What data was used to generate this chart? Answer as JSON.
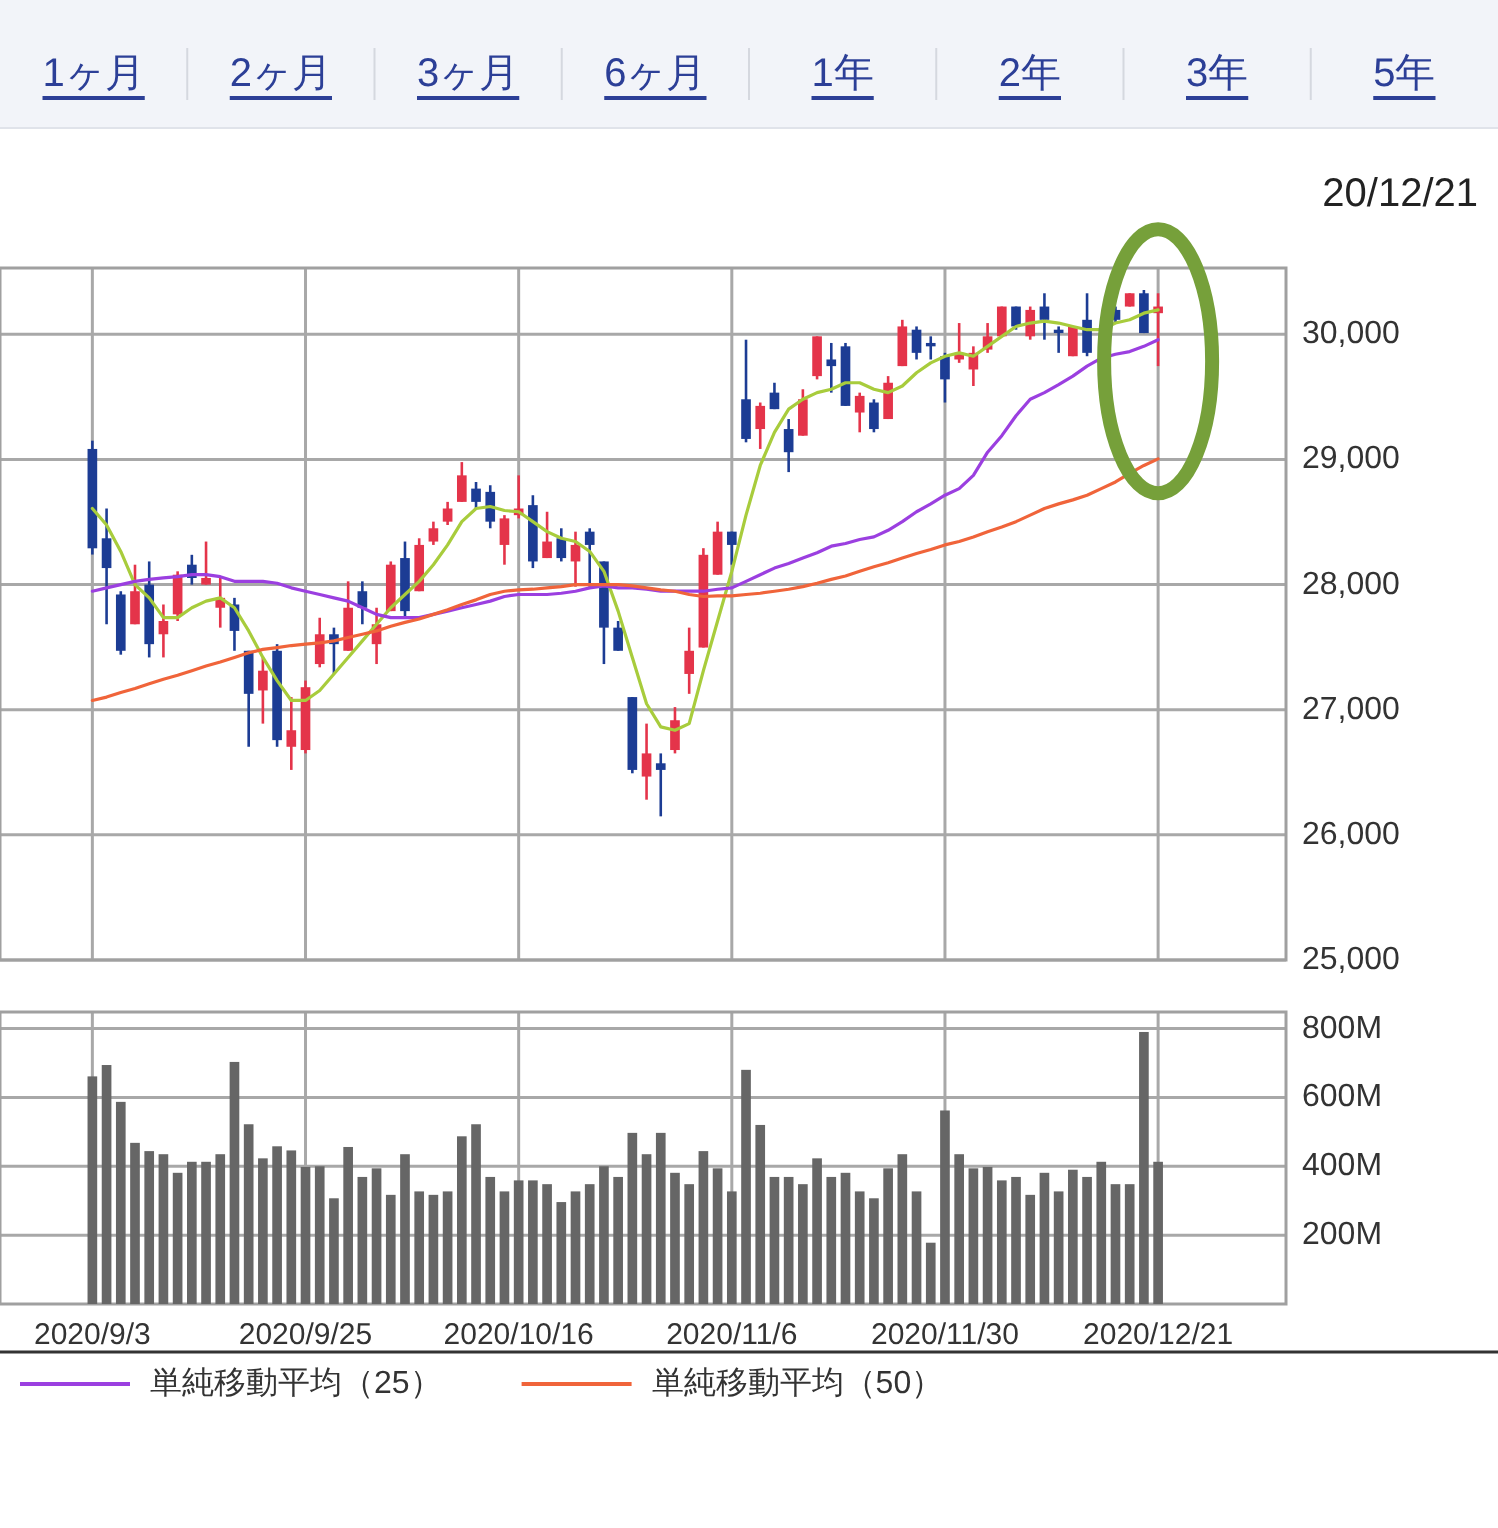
{
  "chart_data": [
    {
      "type": "candlestick",
      "annotations": [
        "1ヶ月",
        "2ヶ月",
        "3ヶ月",
        "6ヶ月",
        "1年",
        "2年",
        "3年",
        "5年",
        "20/12/21"
      ],
      "categories": [
        "2020/9/3",
        null,
        null,
        null,
        null,
        null,
        null,
        null,
        null,
        null,
        null,
        null,
        null,
        null,
        null,
        "2020/9/25",
        null,
        null,
        null,
        null,
        null,
        null,
        null,
        null,
        null,
        null,
        null,
        null,
        null,
        null,
        "2020/10/16",
        null,
        null,
        null,
        null,
        null,
        null,
        null,
        null,
        null,
        null,
        null,
        null,
        null,
        null,
        "2020/11/6",
        null,
        null,
        null,
        null,
        null,
        null,
        null,
        null,
        null,
        null,
        null,
        null,
        null,
        null,
        "2020/11/30",
        null,
        null,
        null,
        null,
        null,
        null,
        null,
        null,
        null,
        null,
        null,
        null,
        null,
        null,
        "2020/12/21",
        null,
        null,
        null,
        null,
        null,
        null,
        null,
        null
      ],
      "ohlc": [
        [
          29084,
          29150,
          28240,
          28290
        ],
        [
          28370,
          28608,
          27683,
          28132
        ],
        [
          27921,
          27947,
          27440,
          27471
        ],
        [
          27683,
          28159,
          27683,
          27947
        ],
        [
          28000,
          28185,
          27418,
          27524
        ],
        [
          27603,
          27841,
          27418,
          27709
        ],
        [
          27762,
          28106,
          27709,
          28079
        ],
        [
          28159,
          28238,
          28000,
          28053
        ],
        [
          28000,
          28344,
          28000,
          28053
        ],
        [
          27815,
          28053,
          27656,
          27894
        ],
        [
          27841,
          27894,
          27471,
          27630
        ],
        [
          27471,
          27471,
          26704,
          27127
        ],
        [
          27154,
          27418,
          26889,
          27312
        ],
        [
          27471,
          27524,
          26704,
          26757
        ],
        [
          26704,
          27101,
          26519,
          26836
        ],
        [
          26678,
          27233,
          26651,
          27180
        ],
        [
          27365,
          27735,
          27339,
          27603
        ],
        [
          27603,
          27656,
          27286,
          27524
        ],
        [
          27471,
          28026,
          27471,
          27815
        ],
        [
          27947,
          28026,
          27683,
          27815
        ],
        [
          27524,
          27815,
          27365,
          27683
        ],
        [
          27788,
          28185,
          27788,
          28159
        ],
        [
          28212,
          28344,
          27735,
          27788
        ],
        [
          27947,
          28370,
          27947,
          28317
        ],
        [
          28344,
          28503,
          28317,
          28450
        ],
        [
          28503,
          28661,
          28476,
          28608
        ],
        [
          28661,
          28979,
          28661,
          28873
        ],
        [
          28767,
          28820,
          28608,
          28661
        ],
        [
          28741,
          28794,
          28450,
          28503
        ],
        [
          28317,
          28555,
          28159,
          28529
        ],
        [
          28555,
          28873,
          28529,
          28608
        ],
        [
          28635,
          28714,
          28132,
          28185
        ],
        [
          28212,
          28582,
          28212,
          28344
        ],
        [
          28370,
          28450,
          28185,
          28212
        ],
        [
          28185,
          28423,
          27983,
          28317
        ],
        [
          28423,
          28450,
          27983,
          28317
        ],
        [
          28185,
          28185,
          27365,
          27656
        ],
        [
          27656,
          27709,
          27471,
          27471
        ],
        [
          27101,
          27101,
          26492,
          26519
        ],
        [
          26466,
          26889,
          26281,
          26651
        ],
        [
          26572,
          26651,
          26148,
          26519
        ],
        [
          26678,
          27021,
          26651,
          26916
        ],
        [
          27286,
          27656,
          27127,
          27471
        ],
        [
          27497,
          28291,
          27497,
          28238
        ],
        [
          28079,
          28503,
          28079,
          28423
        ],
        [
          28423,
          28423,
          28159,
          28317
        ],
        [
          29481,
          29957,
          29137,
          29164
        ],
        [
          29243,
          29455,
          29084,
          29428
        ],
        [
          29534,
          29613,
          29402,
          29402
        ],
        [
          29243,
          29323,
          28899,
          29058
        ],
        [
          29190,
          29561,
          29190,
          29481
        ],
        [
          29666,
          29984,
          29640,
          29984
        ],
        [
          29799,
          29931,
          29534,
          29746
        ],
        [
          29904,
          29931,
          29428,
          29428
        ],
        [
          29375,
          29534,
          29217,
          29508
        ],
        [
          29455,
          29481,
          29217,
          29243
        ],
        [
          29323,
          29666,
          29323,
          29613
        ],
        [
          29746,
          30116,
          29746,
          30063
        ],
        [
          30037,
          30063,
          29799,
          29852
        ],
        [
          29931,
          29984,
          29799,
          29904
        ],
        [
          29825,
          29852,
          29455,
          29640
        ],
        [
          29799,
          30090,
          29772,
          29852
        ],
        [
          29719,
          29904,
          29587,
          29852
        ],
        [
          29878,
          30090,
          29852,
          29984
        ],
        [
          29984,
          30222,
          29984,
          30222
        ],
        [
          30222,
          30222,
          30037,
          30063
        ],
        [
          29984,
          30222,
          29957,
          30195
        ],
        [
          30222,
          30328,
          29957,
          30116
        ],
        [
          30037,
          30063,
          29852,
          30010
        ],
        [
          29825,
          30063,
          29825,
          30063
        ],
        [
          30116,
          30328,
          29825,
          29852
        ],
        null,
        [
          30195,
          30222,
          30090,
          30116
        ],
        [
          30222,
          30328,
          30222,
          30328
        ],
        [
          30328,
          30354,
          30010,
          30010
        ],
        [
          30169,
          30328,
          29746,
          30222
        ],
        null,
        null,
        null,
        null,
        null,
        null,
        null,
        null
      ],
      "colors": [
        "#1c3c94",
        "#1c3c94",
        "#1c3c94",
        "#e4344a",
        "#1c3c94",
        "#e4344a",
        "#e4344a",
        "#1c3c94",
        "#e4344a",
        "#e4344a",
        "#1c3c94",
        "#1c3c94",
        "#e4344a",
        "#1c3c94",
        "#e4344a",
        "#e4344a",
        "#e4344a",
        "#1c3c94",
        "#e4344a",
        "#1c3c94",
        "#e4344a",
        "#e4344a",
        "#1c3c94",
        "#e4344a",
        "#e4344a",
        "#e4344a",
        "#e4344a",
        "#1c3c94",
        "#1c3c94",
        "#e4344a",
        "#e4344a",
        "#1c3c94",
        "#e4344a",
        "#1c3c94",
        "#e4344a",
        "#1c3c94",
        "#1c3c94",
        "#1c3c94",
        "#1c3c94",
        "#e4344a",
        "#1c3c94",
        "#e4344a",
        "#e4344a",
        "#e4344a",
        "#e4344a",
        "#1c3c94",
        "#1c3c94",
        "#e4344a",
        "#1c3c94",
        "#1c3c94",
        "#e4344a",
        "#e4344a",
        "#1c3c94",
        "#1c3c94",
        "#e4344a",
        "#1c3c94",
        "#e4344a",
        "#e4344a",
        "#1c3c94",
        "#1c3c94",
        "#1c3c94",
        "#e4344a",
        "#e4344a",
        "#e4344a",
        "#e4344a",
        "#1c3c94",
        "#e4344a",
        "#1c3c94",
        "#1c3c94",
        "#e4344a",
        "#1c3c94",
        null,
        "#1c3c94",
        "#e4344a",
        "#1c3c94",
        "#e4344a",
        null,
        null,
        null,
        null,
        null,
        null,
        null,
        null
      ],
      "series": [
        {
          "type": "line",
          "color": "#a8cc3c",
          "values": [
            28608,
            28476,
            28265,
            28000,
            27894,
            27736,
            27736,
            27815,
            27868,
            27894,
            27815,
            27630,
            27418,
            27233,
            27074,
            27074,
            27154,
            27286,
            27418,
            27550,
            27683,
            27815,
            27921,
            28026,
            28159,
            28317,
            28503,
            28608,
            28624,
            28592,
            28582,
            28503,
            28423,
            28370,
            28344,
            28265,
            28106,
            27788,
            27418,
            27048,
            26863,
            26836,
            26889,
            27312,
            27709,
            28106,
            28555,
            28952,
            29217,
            29402,
            29481,
            29534,
            29561,
            29613,
            29613,
            29561,
            29534,
            29587,
            29693,
            29772,
            29825,
            29852,
            29825,
            29904,
            29984,
            30063,
            30090,
            30105,
            30090,
            30063,
            30037,
            30037,
            30090,
            30116,
            30169,
            30195,
            null,
            null,
            null,
            null,
            null,
            null,
            null,
            null
          ]
        },
        {
          "type": "line",
          "name": "単純移動平均（25）",
          "color": "#9b3fe0",
          "values": [
            27947,
            27974,
            28000,
            28026,
            28042,
            28053,
            28063,
            28079,
            28079,
            28063,
            28026,
            28026,
            28026,
            28011,
            27974,
            27947,
            27921,
            27894,
            27868,
            27815,
            27762,
            27736,
            27736,
            27736,
            27762,
            27788,
            27815,
            27841,
            27868,
            27905,
            27921,
            27921,
            27921,
            27931,
            27947,
            27974,
            27989,
            27974,
            27974,
            27963,
            27947,
            27947,
            27947,
            27947,
            27963,
            27974,
            28026,
            28079,
            28132,
            28169,
            28212,
            28254,
            28307,
            28328,
            28360,
            28381,
            28434,
            28503,
            28582,
            28645,
            28714,
            28767,
            28873,
            29058,
            29190,
            29349,
            29481,
            29534,
            29598,
            29666,
            29746,
            29809,
            29841,
            29862,
            29904,
            29957,
            null,
            null,
            null,
            null,
            null,
            null,
            null,
            null
          ]
        },
        {
          "type": "line",
          "name": "単純移動平均（50）",
          "color": "#f0643a",
          "values": [
            27074,
            27101,
            27138,
            27169,
            27207,
            27244,
            27275,
            27312,
            27349,
            27381,
            27418,
            27455,
            27482,
            27497,
            27513,
            27524,
            27534,
            27550,
            27577,
            27603,
            27630,
            27667,
            27698,
            27725,
            27762,
            27799,
            27841,
            27878,
            27921,
            27947,
            27958,
            27963,
            27974,
            27984,
            28000,
            28000,
            28000,
            28000,
            27989,
            27974,
            27958,
            27947,
            27921,
            27905,
            27910,
            27910,
            27921,
            27931,
            27947,
            27963,
            27984,
            28011,
            28042,
            28069,
            28106,
            28143,
            28175,
            28212,
            28249,
            28280,
            28317,
            28344,
            28381,
            28423,
            28460,
            28503,
            28555,
            28608,
            28645,
            28677,
            28714,
            28767,
            28820,
            28889,
            28952,
            29005,
            null,
            null,
            null,
            null,
            null,
            null,
            null,
            null
          ]
        }
      ],
      "ylim": [
        25000,
        30530
      ],
      "yticks": [
        {
          "value": 25000,
          "label": "25,000"
        },
        {
          "value": 26000,
          "label": "26,000"
        },
        {
          "value": 27000,
          "label": "27,000"
        },
        {
          "value": 28000,
          "label": "28,000"
        },
        {
          "value": 29000,
          "label": "29,000"
        },
        {
          "value": 30000,
          "label": "30,000"
        }
      ],
      "grid": true,
      "legend": "bottom",
      "tick_labels": "y"
    },
    {
      "type": "bar",
      "categories": [
        "2020/9/3",
        null,
        null,
        null,
        null,
        null,
        null,
        null,
        null,
        null,
        null,
        null,
        null,
        null,
        null,
        "2020/9/25",
        null,
        null,
        null,
        null,
        null,
        null,
        null,
        null,
        null,
        null,
        null,
        null,
        null,
        null,
        "2020/10/16",
        null,
        null,
        null,
        null,
        null,
        null,
        null,
        null,
        null,
        null,
        null,
        null,
        null,
        null,
        "2020/11/6",
        null,
        null,
        null,
        null,
        null,
        null,
        null,
        null,
        null,
        null,
        null,
        null,
        null,
        null,
        "2020/11/30",
        null,
        null,
        null,
        null,
        null,
        null,
        null,
        null,
        null,
        null,
        null,
        null,
        null,
        null,
        "2020/12/21",
        null,
        null,
        null,
        null,
        null,
        null,
        null,
        null
      ],
      "values": [
        661,
        694,
        587,
        468,
        444,
        435,
        381,
        413,
        413,
        435,
        703,
        522,
        423,
        458,
        446,
        398,
        400,
        307,
        456,
        369,
        394,
        317,
        435,
        327,
        317,
        327,
        487,
        522,
        369,
        327,
        359,
        359,
        348,
        296,
        327,
        348,
        400,
        369,
        497,
        435,
        497,
        381,
        348,
        444,
        394,
        327,
        680,
        520,
        369,
        369,
        348,
        423,
        369,
        381,
        327,
        307,
        394,
        435,
        327,
        178,
        562,
        435,
        394,
        398,
        359,
        369,
        317,
        381,
        327,
        390,
        369,
        413,
        348,
        348,
        790,
        413,
        null,
        null,
        null,
        null,
        null,
        null,
        null,
        null
      ],
      "color": "#666666",
      "ylim": [
        0,
        848
      ],
      "yticks": [
        {
          "value": 200,
          "label": "200M"
        },
        {
          "value": 400,
          "label": "400M"
        },
        {
          "value": 600,
          "label": "600M"
        },
        {
          "value": 800,
          "label": "800M"
        }
      ],
      "grid": true
    }
  ]
}
